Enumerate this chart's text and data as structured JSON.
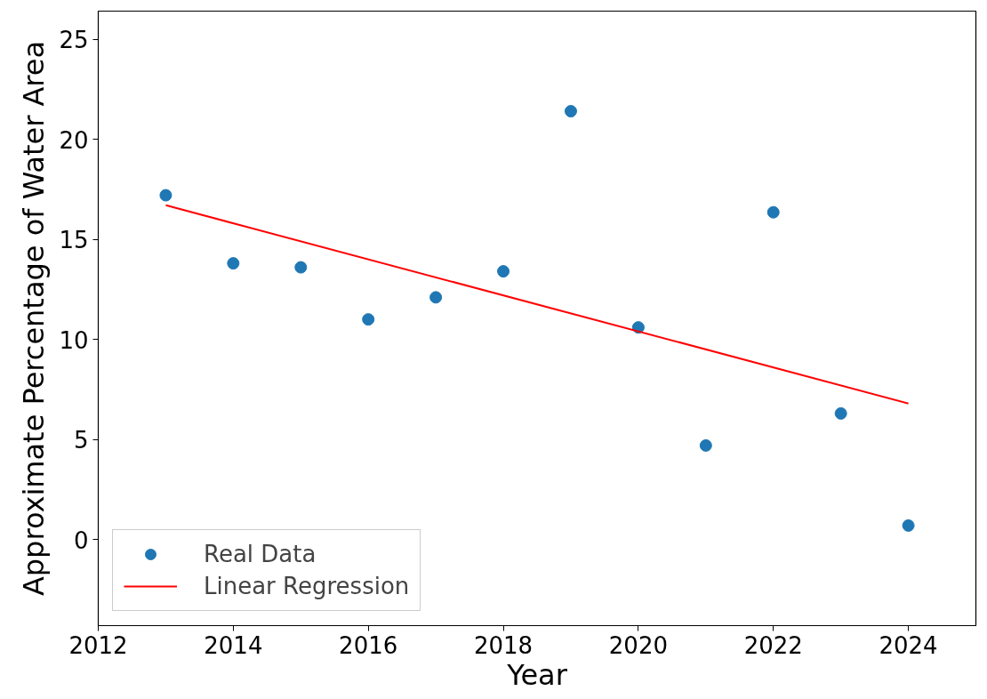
{
  "chart_data": {
    "type": "scatter",
    "xlabel": "Year",
    "ylabel": "Approximate Percentage of Water Area",
    "x": [
      2013,
      2014,
      2015,
      2016,
      2017,
      2018,
      2019,
      2020,
      2021,
      2022,
      2023,
      2024
    ],
    "series": [
      {
        "name": "Real Data",
        "marker": "circle",
        "color": "#1f77b4",
        "values": [
          17.2,
          13.8,
          13.6,
          11.0,
          12.1,
          13.4,
          21.4,
          10.6,
          4.7,
          16.35,
          6.3,
          0.7
        ]
      },
      {
        "name": "Linear Regression",
        "type": "line",
        "color": "#ff0000",
        "x": [
          2013,
          2024
        ],
        "values": [
          16.7,
          6.8
        ]
      }
    ],
    "xlim": [
      2012,
      2025
    ],
    "ylim": [
      -4.3,
      26.4
    ],
    "xticks": [
      2012,
      2014,
      2016,
      2018,
      2020,
      2022,
      2024
    ],
    "yticks": [
      0,
      5,
      10,
      15,
      20,
      25
    ],
    "line_style": "solid",
    "grid": false,
    "legend": "bottom left"
  }
}
